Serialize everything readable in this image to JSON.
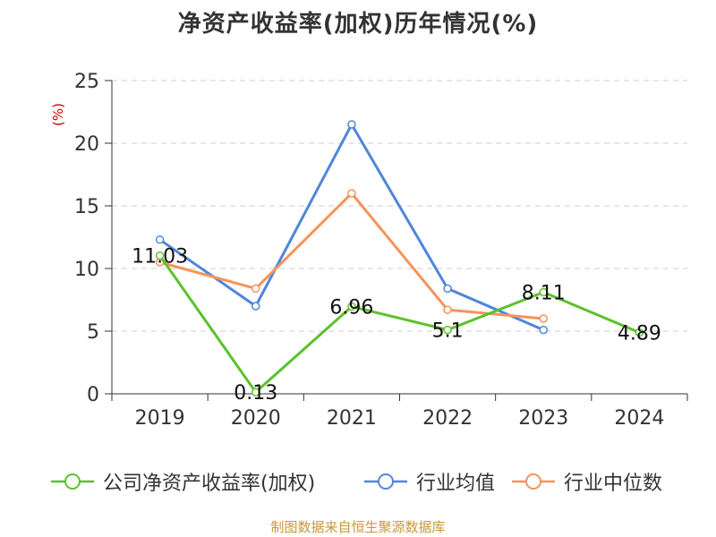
{
  "chart_data": {
    "type": "line",
    "title": "净资产收益率(加权)历年情况(%)",
    "ylabel": "(%)",
    "xlabel": "",
    "categories": [
      "2019",
      "2020",
      "2021",
      "2022",
      "2023",
      "2024"
    ],
    "ylim": [
      0,
      25
    ],
    "yticks": [
      0,
      5,
      10,
      15,
      20,
      25
    ],
    "grid": "horizontal-dashed",
    "legend_position": "bottom",
    "series": [
      {
        "name": "公司净资产收益率(加权)",
        "color": "#5cc12b",
        "values": [
          11.03,
          0.13,
          6.96,
          5.1,
          8.11,
          4.89
        ],
        "labels": [
          "11.03",
          "0.13",
          "6.96",
          "5.1",
          "8.11",
          "4.89"
        ]
      },
      {
        "name": "行业均值",
        "color": "#4f86db",
        "values": [
          12.3,
          7.0,
          21.5,
          8.4,
          5.1,
          null
        ]
      },
      {
        "name": "行业中位数",
        "color": "#f5935c",
        "values": [
          10.5,
          8.4,
          16.0,
          6.7,
          6.0,
          null
        ]
      }
    ]
  },
  "source": "制图数据来自恒生聚源数据库",
  "colors": {
    "axis": "#333333",
    "grid": "#cccccc",
    "ylabel": "#cc0000",
    "source": "#c9973b"
  }
}
